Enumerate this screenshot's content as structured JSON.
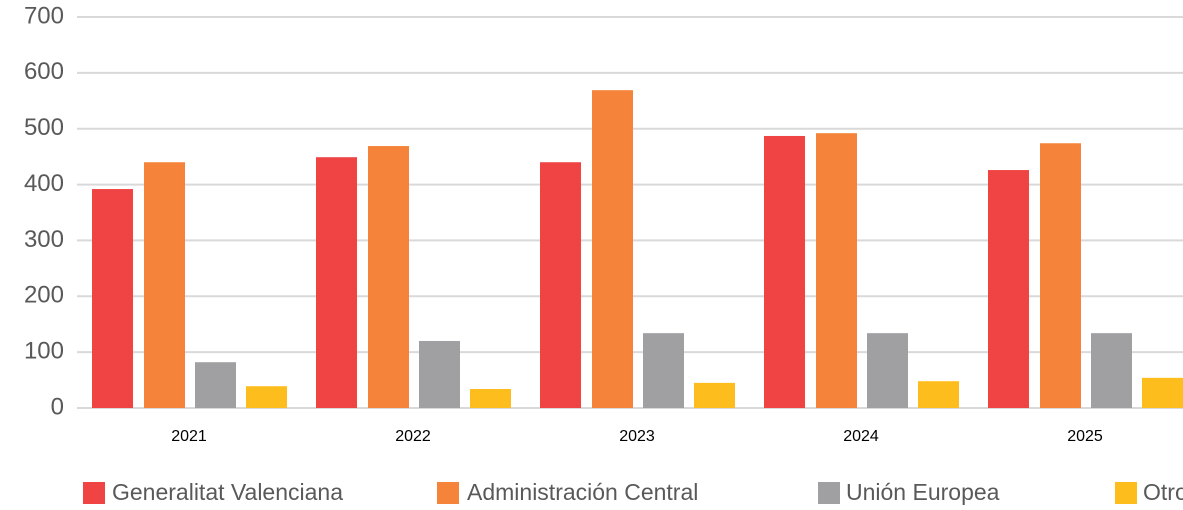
{
  "chart_data": {
    "type": "bar",
    "categories": [
      "2021",
      "2022",
      "2023",
      "2024",
      "2025"
    ],
    "series": [
      {
        "name": "Generalitat Valenciana",
        "color": "#f04343",
        "values": [
          392,
          449,
          440,
          487,
          426
        ]
      },
      {
        "name": "Administración Central",
        "color": "#f5843a",
        "values": [
          440,
          469,
          569,
          492,
          474
        ]
      },
      {
        "name": "Unión Europea",
        "color": "#a0a0a2",
        "values": [
          82,
          120,
          134,
          134,
          134
        ]
      },
      {
        "name": "Otros",
        "color": "#fdbd1d",
        "values": [
          39,
          34,
          45,
          48,
          54
        ]
      }
    ],
    "ylim": [
      0,
      700
    ],
    "yticks": [
      0,
      100,
      200,
      300,
      400,
      500,
      600,
      700
    ],
    "grid": true,
    "legend": "bottom"
  }
}
